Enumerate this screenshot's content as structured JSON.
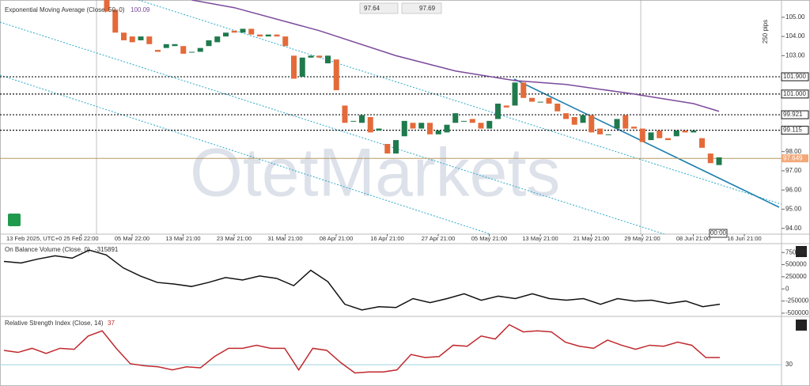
{
  "chart_data": [
    {
      "type": "candlestick",
      "title": "Exponential Moving Average (Close, 50, 0)",
      "title_value": 100.09,
      "bid": "97.64",
      "ask": "97.69",
      "scale_label": "250 pips",
      "time_marker": "00:00",
      "watermark": "OtetMarkets",
      "x_labels": [
        "13 Feb 2025, UTC+0",
        "25 Feb 22:00",
        "05 Mar 22:00",
        "13 Mar 21:00",
        "23 Mar 21:00",
        "31 Mar 21:00",
        "08 Apr 21:00",
        "16 Apr 21:00",
        "27 Apr 21:00",
        "05 May 21:00",
        "13 May 21:00",
        "21 May 21:00",
        "29 May 21:00",
        "08 Jun 21:00",
        "16 Jun 21:00"
      ],
      "open": [
        106.0,
        105.4,
        104.2,
        104.0,
        103.8,
        104.0,
        103.3,
        103.4,
        103.5,
        103.5,
        103.2,
        103.2,
        103.5,
        103.7,
        104.0,
        104.3,
        104.2,
        104.4,
        104.1,
        104.0,
        104.1,
        104.0,
        103.0,
        101.9,
        102.9,
        103.0,
        102.6,
        102.8,
        100.4,
        99.6,
        99.5,
        99.8,
        99.1,
        98.4,
        97.9,
        98.8,
        99.5,
        99.2,
        99.5,
        98.9,
        99.0,
        99.5,
        99.6,
        99.7,
        99.5,
        99.2,
        99.7,
        100.4,
        100.4,
        101.6,
        100.8,
        100.6,
        100.8,
        100.5,
        100.0,
        99.8,
        99.5,
        99.9,
        99.2,
        98.9,
        99.2,
        99.9,
        99.3,
        99.2,
        98.6,
        99.1,
        98.7,
        98.8,
        99.1,
        99.0,
        98.7,
        97.9,
        97.3
      ],
      "close": [
        105.3,
        104.2,
        103.8,
        103.7,
        104.0,
        103.6,
        103.2,
        103.6,
        103.6,
        103.1,
        103.2,
        103.4,
        103.8,
        104.0,
        104.2,
        104.2,
        104.4,
        104.1,
        104.0,
        104.1,
        104.0,
        103.5,
        101.8,
        102.9,
        103.0,
        102.9,
        103.0,
        101.2,
        99.5,
        99.6,
        99.9,
        99.0,
        99.2,
        97.9,
        98.6,
        99.6,
        99.2,
        99.5,
        98.9,
        99.1,
        99.4,
        100.0,
        99.6,
        99.5,
        99.2,
        99.6,
        100.5,
        100.3,
        101.6,
        100.8,
        100.6,
        100.6,
        100.5,
        100.1,
        99.7,
        99.4,
        99.9,
        99.0,
        98.9,
        98.9,
        99.7,
        99.2,
        99.2,
        98.5,
        99.0,
        98.7,
        98.6,
        99.1,
        99.0,
        99.1,
        98.2,
        97.4,
        97.7
      ],
      "up_color": "#1f7a4d",
      "down_color": "#e46a3a",
      "ema": {
        "x": [
          10,
          15,
          25,
          34,
          41,
          48,
          54,
          62,
          69,
          72
        ],
        "values": [
          105.9,
          105.5,
          104.3,
          103.0,
          102.2,
          101.7,
          101.5,
          101.0,
          100.5,
          100.1
        ],
        "color": "#7b4a9b"
      },
      "levels": [
        {
          "value": 101.9,
          "label": "101.900"
        },
        {
          "value": 101.0,
          "label": "101.000"
        },
        {
          "value": 99.921,
          "label": "99.921"
        },
        {
          "value": 99.115,
          "label": "99.115"
        }
      ],
      "last_price": 97.649,
      "ylim": [
        93.7,
        105.9
      ],
      "yticks": [
        {
          "value": 105,
          "label": "105.00"
        },
        {
          "value": 104,
          "label": "104.00"
        },
        {
          "value": 103,
          "label": "103.00"
        },
        {
          "value": 98,
          "label": "98.00"
        },
        {
          "value": 97,
          "label": "97.00"
        },
        {
          "value": 96,
          "label": "96.00"
        },
        {
          "value": 95,
          "label": "95.00"
        },
        {
          "value": 94,
          "label": "94.00"
        }
      ]
    },
    {
      "type": "line",
      "title": "On Balance Volume (Close, 0)",
      "last_value": -315891,
      "color": "#111111",
      "values": [
        566667,
        533333,
        616667,
        683333,
        633333,
        800000,
        700000,
        433333,
        266667,
        133333,
        100000,
        50000,
        133333,
        233333,
        183333,
        266667,
        216667,
        66667,
        383333,
        150000,
        -316667,
        -433333,
        -366667,
        -383333,
        -200000,
        -283333,
        -200000,
        -100000,
        -233333,
        -150000,
        -200000,
        -100000,
        -200000,
        -233333,
        -200000,
        -316667,
        -200000,
        -250000,
        -233333,
        -300000,
        -250000,
        -366667,
        -315891
      ],
      "ylim": [
        -566667,
        933333
      ],
      "yticks": [
        750000,
        500000,
        250000,
        0,
        -250000,
        -500000
      ]
    },
    {
      "type": "line",
      "title": "Relative Strength Index (Close, 14)",
      "last_value": 37,
      "color": "#c0282d",
      "values": [
        44,
        42,
        46,
        41,
        46,
        45,
        58,
        63,
        46,
        31,
        29,
        28,
        25,
        28,
        27,
        38,
        46,
        46,
        49,
        46,
        46,
        25,
        46,
        44,
        32,
        22,
        23,
        23,
        25,
        40,
        37,
        38,
        49,
        48,
        58,
        55,
        69,
        62,
        63,
        62,
        52,
        48,
        46,
        54,
        49,
        45,
        49,
        48,
        52,
        49,
        37,
        37
      ],
      "ylim": [
        17,
        74
      ],
      "yticks": [
        30
      ]
    }
  ]
}
